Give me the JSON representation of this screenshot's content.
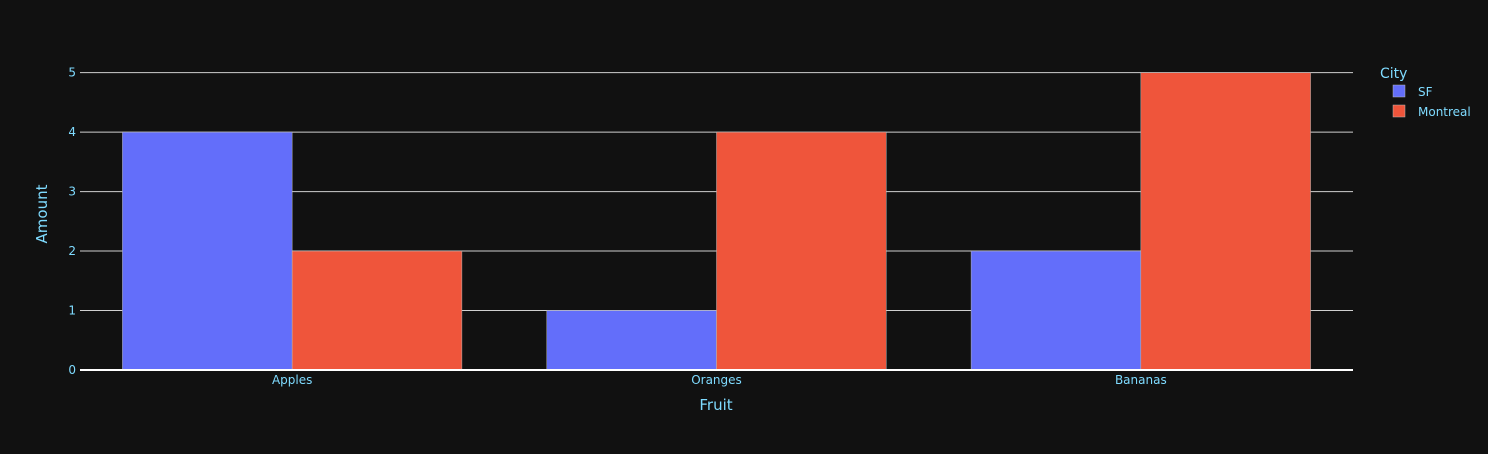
{
  "chart_data": {
    "type": "bar",
    "barmode": "group",
    "categories": [
      "Apples",
      "Oranges",
      "Bananas"
    ],
    "series": [
      {
        "name": "SF",
        "values": [
          4,
          1,
          2
        ],
        "color": "#636efa"
      },
      {
        "name": "Montreal",
        "values": [
          2,
          4,
          5
        ],
        "color": "#ef553b"
      }
    ],
    "xlabel": "Fruit",
    "ylabel": "Amount",
    "ylim": [
      0,
      5.263
    ],
    "yticks": [
      0,
      1,
      2,
      3,
      4,
      5
    ],
    "grid": true,
    "legend": {
      "title": "City",
      "position": "top-right"
    },
    "colors": {
      "background": "#111111",
      "text": "#7fdbff",
      "grid": "#d0d0d0"
    }
  }
}
